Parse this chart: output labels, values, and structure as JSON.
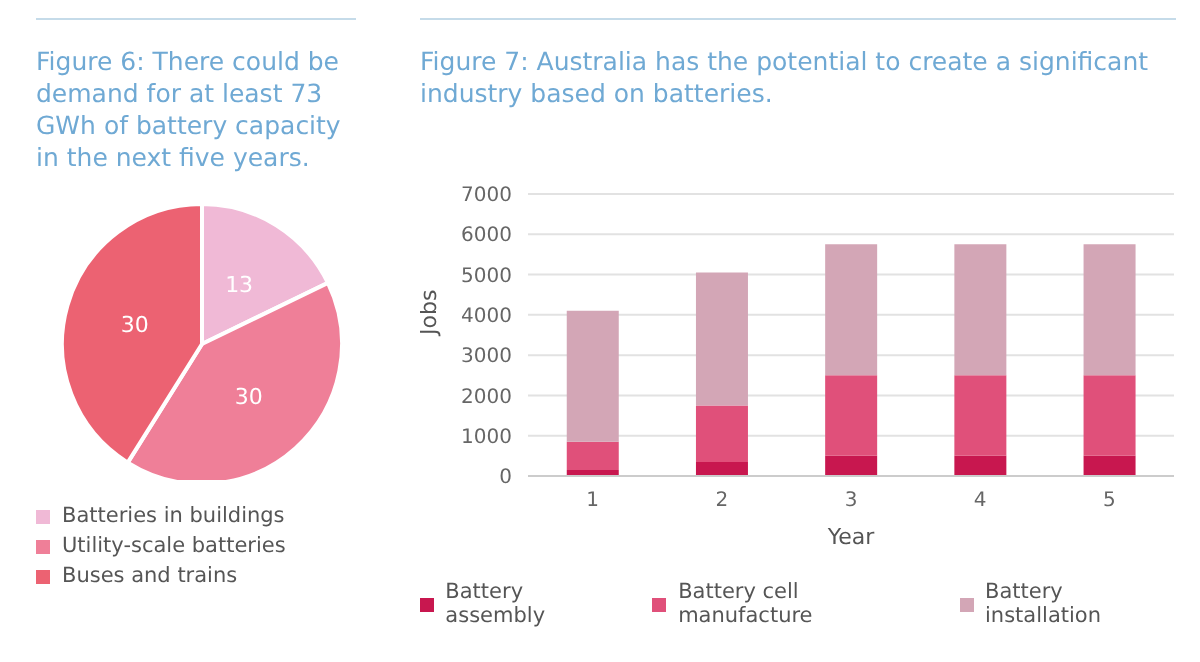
{
  "chart_data": [
    {
      "type": "pie",
      "title": "Figure 6: There could be demand for at least 73 GWh of battery capacity in the next five years.",
      "categories": [
        "Batteries in buildings",
        "Utility-scale batteries",
        "Buses and trains"
      ],
      "values": [
        13,
        30,
        30
      ],
      "colors": [
        "#f0b9d6",
        "#ef7f98",
        "#ec6272"
      ],
      "data_labels": true,
      "legend": "bottom"
    },
    {
      "type": "bar",
      "title": "Figure 7: Australia has the potential to create a significant industry based on batteries.",
      "xlabel": "Year",
      "ylabel": "Jobs",
      "categories": [
        "1",
        "2",
        "3",
        "4",
        "5"
      ],
      "stacked": true,
      "series": [
        {
          "name": "Battery assembly",
          "color": "#c8174f",
          "values": [
            150,
            350,
            500,
            500,
            500
          ]
        },
        {
          "name": "Battery cell manufacture",
          "color": "#e0507a",
          "values": [
            700,
            1400,
            2000,
            2000,
            2000
          ]
        },
        {
          "name": "Battery installation",
          "color": "#d3a6b6",
          "values": [
            3250,
            3300,
            3250,
            3250,
            3250
          ]
        }
      ],
      "ylim": [
        0,
        7000
      ],
      "yticks": [
        0,
        1000,
        2000,
        3000,
        4000,
        5000,
        6000,
        7000
      ],
      "grid": "y",
      "legend": "bottom"
    }
  ]
}
